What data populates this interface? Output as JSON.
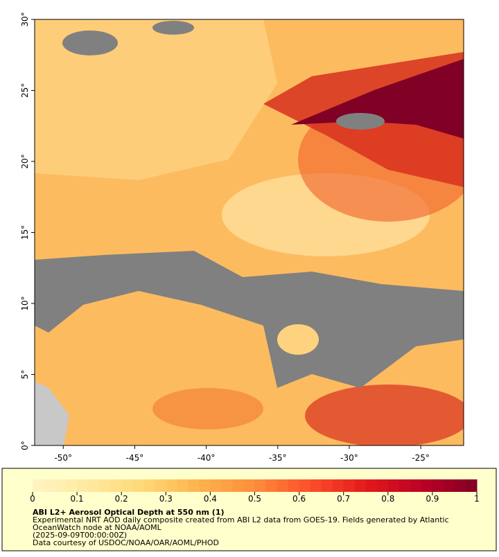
{
  "map": {
    "xlim": [
      -52,
      -22
    ],
    "ylim": [
      0,
      30
    ],
    "xticks": [
      {
        "value": -50,
        "label": "-50°"
      },
      {
        "value": -45,
        "label": "-45°"
      },
      {
        "value": -40,
        "label": "-40°"
      },
      {
        "value": -35,
        "label": "-35°"
      },
      {
        "value": -30,
        "label": "-30°"
      },
      {
        "value": -25,
        "label": "-25°"
      }
    ],
    "yticks": [
      {
        "value": 0,
        "label": "0°"
      },
      {
        "value": 5,
        "label": "5°"
      },
      {
        "value": 10,
        "label": "10°"
      },
      {
        "value": 15,
        "label": "15°"
      },
      {
        "value": 20,
        "label": "20°"
      },
      {
        "value": 25,
        "label": "25°"
      },
      {
        "value": 30,
        "label": "30°"
      }
    ]
  },
  "colorbar": {
    "lim": [
      0,
      1
    ],
    "ticks": [
      0,
      0.1,
      0.2,
      0.3,
      0.4,
      0.5,
      0.6,
      0.7,
      0.8,
      0.9,
      1
    ],
    "colormap": [
      "#fff5c4",
      "#ffe9a0",
      "#fed976",
      "#feb24c",
      "#fd8d3c",
      "#fc4e2a",
      "#e31a1c",
      "#bd0026",
      "#800026"
    ]
  },
  "info": {
    "title": "ABI L2+ Aerosol Optical Depth at 550 nm (1)",
    "lines": [
      "Experimental NRT AOD daily composite created from ABI L2 data from GOES-19. Fields generated by Atlantic",
      "OceanWatch node at NOAA/AOML",
      "(2025-09-09T00:00:00Z)",
      "Data courtesy of USDOC/NOAA/OAR/AOML/PHOD"
    ]
  }
}
